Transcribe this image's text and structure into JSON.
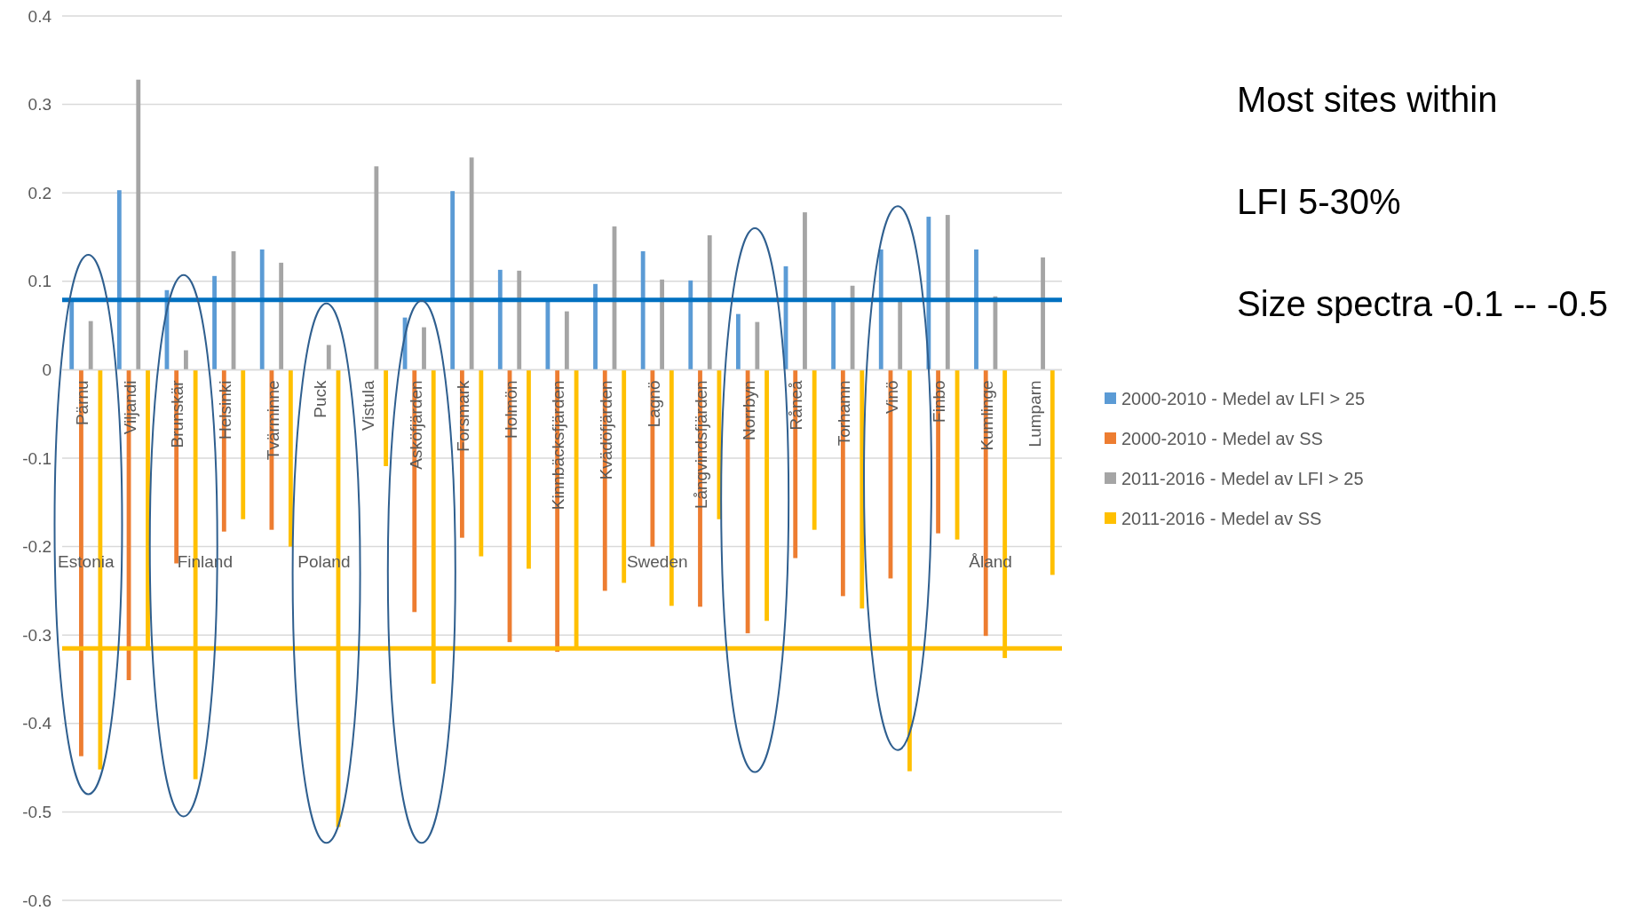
{
  "chart_data": {
    "type": "bar",
    "categories": [
      "Pärnu",
      "Viljandi",
      "Brunskär",
      "Helsinki",
      "Tvärminne",
      "Puck",
      "Vistula",
      "Asköfjärden",
      "Forsmark",
      "Holmön",
      "Kinnbäcksfjärden",
      "Kvädöfjärden",
      "Lagnö",
      "Långvindsfjärden",
      "Norrbyn",
      "Råneå",
      "Torhamn",
      "Vinö",
      "Finbo",
      "Kumlinge",
      "Lumparn"
    ],
    "series": [
      {
        "name": "2000-2010 - Medel av LFI > 25",
        "color": "#5b9bd5",
        "values": [
          0.08,
          0.203,
          0.09,
          0.106,
          0.136,
          null,
          null,
          0.059,
          0.202,
          0.113,
          0.079,
          0.097,
          0.134,
          0.101,
          0.063,
          0.117,
          0.078,
          0.136,
          0.173,
          0.136,
          null
        ]
      },
      {
        "name": "2000-2010 - Medel av SS",
        "color": "#ed7d31",
        "values": [
          -0.437,
          -0.351,
          -0.219,
          -0.183,
          -0.181,
          null,
          null,
          -0.274,
          -0.19,
          -0.308,
          -0.319,
          -0.25,
          -0.2,
          -0.268,
          -0.298,
          -0.213,
          -0.256,
          -0.236,
          -0.185,
          -0.301,
          null
        ]
      },
      {
        "name": "2011-2016 - Medel av LFI > 25",
        "color": "#a5a5a5",
        "values": [
          0.055,
          0.328,
          0.022,
          0.134,
          0.121,
          0.028,
          0.23,
          0.048,
          0.24,
          0.112,
          0.066,
          0.162,
          0.102,
          0.152,
          0.054,
          0.178,
          0.095,
          0.078,
          0.175,
          0.083,
          0.127
        ]
      },
      {
        "name": "2011-2016 - Medel av SS",
        "color": "#ffc000",
        "values": [
          -0.452,
          -0.314,
          -0.463,
          -0.169,
          -0.2,
          -0.517,
          -0.109,
          -0.355,
          -0.211,
          -0.225,
          -0.313,
          -0.241,
          -0.267,
          -0.169,
          -0.284,
          -0.181,
          -0.27,
          -0.454,
          -0.192,
          -0.326,
          -0.232
        ]
      }
    ],
    "ylim": [
      -0.6,
      0.4
    ],
    "yticks": [
      -0.6,
      -0.5,
      -0.4,
      -0.3,
      -0.2,
      -0.1,
      0,
      0.1,
      0.2,
      0.3,
      0.4
    ],
    "grid": "y",
    "legend": "right",
    "ref_lines": [
      {
        "axis": "y",
        "value": 0.079,
        "color": "#0070c0"
      },
      {
        "axis": "y",
        "value": -0.315,
        "color": "#ffc000"
      }
    ],
    "annotations": [
      "Estonia",
      "Finland",
      "Poland",
      "Sweden",
      "Åland",
      "Most sites within",
      "LFI 5-30%",
      "Size spectra -0.1 -- -0.5"
    ]
  }
}
